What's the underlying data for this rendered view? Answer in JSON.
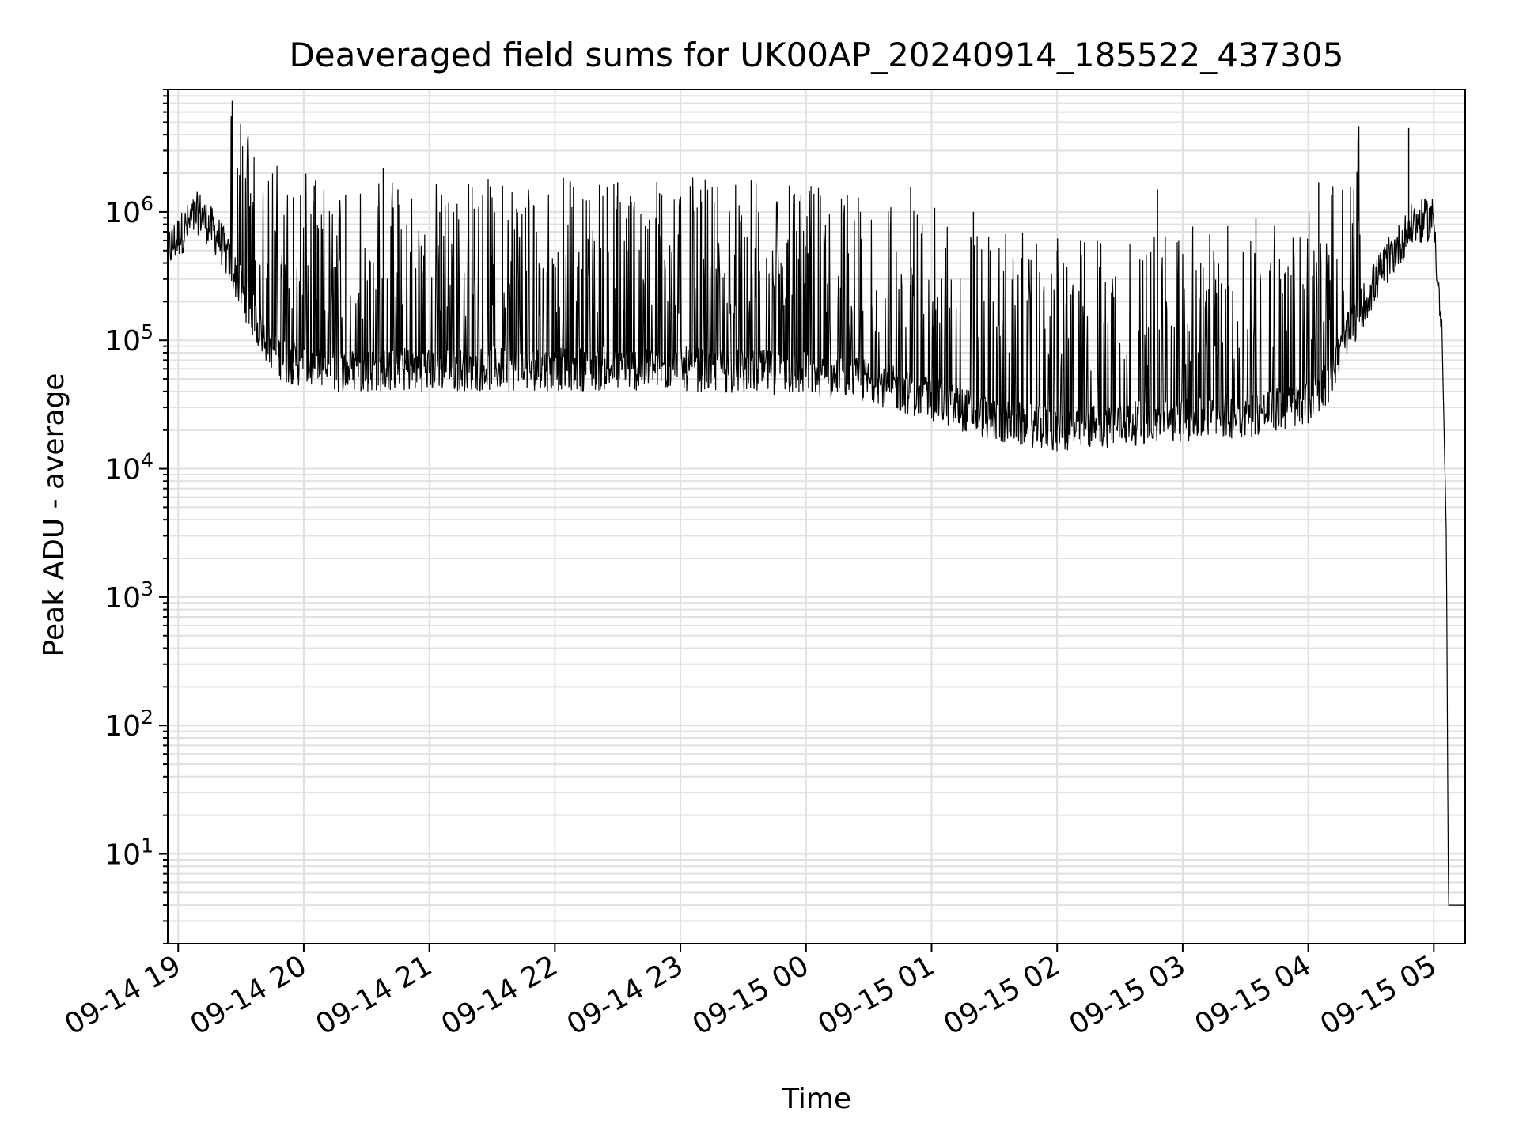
{
  "chart_data": {
    "type": "line",
    "title": "Deaveraged field sums for UK00AP_20240914_185522_437305",
    "xlabel": "Time",
    "ylabel": "Peak ADU - average",
    "yscale": "log",
    "ylim": [
      2,
      9000000
    ],
    "xlim": [
      "2024-09-14 18:55",
      "2024-09-15 05:15"
    ],
    "grid": true,
    "x_ticks": [
      {
        "t": "2024-09-14 19:00",
        "label": "09-14 19"
      },
      {
        "t": "2024-09-14 20:00",
        "label": "09-14 20"
      },
      {
        "t": "2024-09-14 21:00",
        "label": "09-14 21"
      },
      {
        "t": "2024-09-14 22:00",
        "label": "09-14 22"
      },
      {
        "t": "2024-09-14 23:00",
        "label": "09-14 23"
      },
      {
        "t": "2024-09-15 00:00",
        "label": "09-15 00"
      },
      {
        "t": "2024-09-15 01:00",
        "label": "09-15 01"
      },
      {
        "t": "2024-09-15 02:00",
        "label": "09-15 02"
      },
      {
        "t": "2024-09-15 03:00",
        "label": "09-15 03"
      },
      {
        "t": "2024-09-15 04:00",
        "label": "09-15 04"
      },
      {
        "t": "2024-09-15 05:00",
        "label": "09-15 05"
      }
    ],
    "y_ticks": [
      {
        "value": 10,
        "base": "10",
        "exp": "1"
      },
      {
        "value": 100,
        "base": "10",
        "exp": "2"
      },
      {
        "value": 1000,
        "base": "10",
        "exp": "3"
      },
      {
        "value": 10000,
        "base": "10",
        "exp": "4"
      },
      {
        "value": 100000,
        "base": "10",
        "exp": "5"
      },
      {
        "value": 1000000,
        "base": "10",
        "exp": "6"
      }
    ],
    "series": [
      {
        "color": "#000000",
        "baseline": [
          [
            "2024-09-14 18:55",
            500000
          ],
          [
            "2024-09-14 19:02",
            700000
          ],
          [
            "2024-09-14 19:10",
            1000000
          ],
          [
            "2024-09-14 19:20",
            600000
          ],
          [
            "2024-09-14 19:30",
            250000
          ],
          [
            "2024-09-14 19:40",
            110000
          ],
          [
            "2024-09-14 19:50",
            70000
          ],
          [
            "2024-09-14 20:10",
            58000
          ],
          [
            "2024-09-14 21:00",
            60000
          ],
          [
            "2024-09-14 22:00",
            60000
          ],
          [
            "2024-09-14 23:00",
            60000
          ],
          [
            "2024-09-15 00:00",
            55000
          ],
          [
            "2024-09-15 00:30",
            48000
          ],
          [
            "2024-09-15 01:00",
            35000
          ],
          [
            "2024-09-15 01:30",
            24000
          ],
          [
            "2024-09-15 02:00",
            20000
          ],
          [
            "2024-09-15 02:30",
            22000
          ],
          [
            "2024-09-15 03:00",
            24000
          ],
          [
            "2024-09-15 03:30",
            26000
          ],
          [
            "2024-09-15 04:00",
            32000
          ],
          [
            "2024-09-15 04:10",
            50000
          ],
          [
            "2024-09-15 04:20",
            120000
          ],
          [
            "2024-09-15 04:35",
            350000
          ],
          [
            "2024-09-15 04:50",
            800000
          ],
          [
            "2024-09-15 05:00",
            900000
          ],
          [
            "2024-09-15 05:04",
            100000
          ],
          [
            "2024-09-15 05:06",
            3000
          ],
          [
            "2024-09-15 05:07",
            4
          ],
          [
            "2024-09-15 05:15",
            4
          ]
        ],
        "spikes": [
          [
            "2024-09-14 19:55",
            1300000
          ],
          [
            "2024-09-14 20:05",
            1600000
          ],
          [
            "2024-09-14 20:20",
            1350000
          ],
          [
            "2024-09-14 20:38",
            2200000
          ],
          [
            "2024-09-14 20:45",
            1500000
          ],
          [
            "2024-09-14 21:05",
            1000000
          ],
          [
            "2024-09-14 21:35",
            1600000
          ],
          [
            "2024-09-14 21:50",
            1100000
          ],
          [
            "2024-09-14 22:25",
            1550000
          ],
          [
            "2024-09-14 22:30",
            1700000
          ],
          [
            "2024-09-14 22:50",
            1400000
          ],
          [
            "2024-09-14 23:10",
            1200000
          ],
          [
            "2024-09-14 23:52",
            1600000
          ],
          [
            "2024-09-15 00:25",
            1300000
          ],
          [
            "2024-09-15 00:50",
            1550000
          ],
          [
            "2024-09-15 01:20",
            1000000
          ],
          [
            "2024-09-15 02:00",
            500000
          ],
          [
            "2024-09-15 02:48",
            1500000
          ],
          [
            "2024-09-15 03:35",
            900000
          ],
          [
            "2024-09-15 04:05",
            1700000
          ],
          [
            "2024-09-15 04:48",
            4500000
          ]
        ]
      }
    ]
  }
}
